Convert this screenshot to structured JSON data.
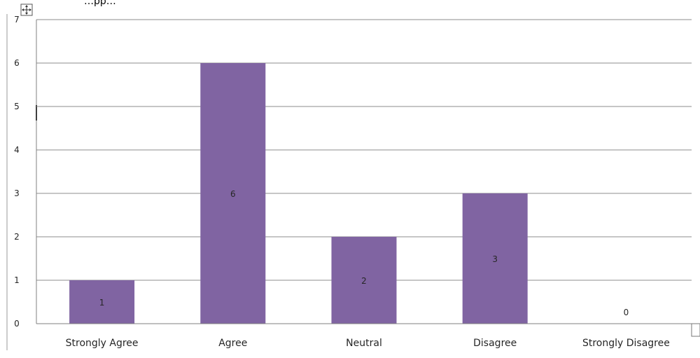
{
  "header_text": "…pp…",
  "colors": {
    "bar": "#8064a2",
    "grid": "#8c8c8c",
    "axis": "#808080",
    "text": "#262626",
    "background": "#ffffff"
  },
  "icons": {
    "move_handle": "move-handle-icon",
    "resize_handle": "resize-handle-icon"
  },
  "chart_data": {
    "type": "bar",
    "categories": [
      "Strongly Agree",
      "Agree",
      "Neutral",
      "Disagree",
      "Strongly Disagree"
    ],
    "values": [
      1,
      6,
      2,
      3,
      0
    ],
    "data_labels": [
      "1",
      "6",
      "2",
      "3",
      "0"
    ],
    "ylim": [
      0,
      7
    ],
    "y_ticks": [
      0,
      1,
      2,
      3,
      4,
      5,
      6,
      7
    ],
    "y_tick_labels": [
      "0",
      "1",
      "2",
      "3",
      "4",
      "5",
      "6",
      "7"
    ],
    "title": "",
    "xlabel": "",
    "ylabel": "",
    "grid": true,
    "legend": "none"
  }
}
